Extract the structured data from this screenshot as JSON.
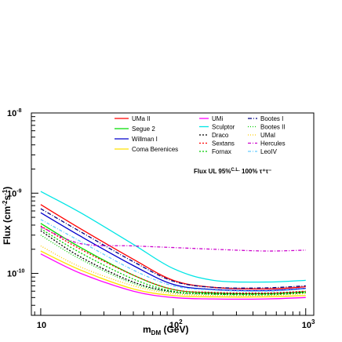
{
  "chart_data": {
    "type": "line",
    "title": "",
    "xlabel": "m_DM (GeV)",
    "ylabel": "Flux (cm^-2 s^-1)",
    "xscale": "log",
    "yscale": "log",
    "xlim": [
      8.5,
      1150
    ],
    "ylim": [
      3e-11,
      1e-08
    ],
    "x_ticks": [
      {
        "value": 10,
        "label": "10",
        "sup": ""
      },
      {
        "value": 100,
        "label": "10",
        "sup": "2"
      },
      {
        "value": 1000,
        "label": "10",
        "sup": "3"
      }
    ],
    "y_ticks": [
      {
        "value": 1e-08,
        "label": "10",
        "sup": "-8"
      },
      {
        "value": 1e-09,
        "label": "10",
        "sup": "-9"
      },
      {
        "value": 1e-10,
        "label": "10",
        "sup": "-10"
      }
    ],
    "xlabel_parts": {
      "main": "m",
      "sub": "DM",
      "rest": " (GeV)"
    },
    "ylabel_parts": {
      "pre": "Flux (cm",
      "sup1": "-2",
      "mid": "s",
      "sup2": "-1",
      "post": ")"
    },
    "grid": false,
    "legend_position": "top",
    "annotation": {
      "pre": "Flux UL 95%",
      "sup": "C.L.",
      "post": " 100% τ⁺τ⁻",
      "color": "#8da0cb"
    },
    "x": [
      10,
      20,
      50,
      100,
      200,
      500,
      1000
    ],
    "series": [
      {
        "name": "UMa II",
        "color": "#ff0000",
        "dash": "solid",
        "values": [
          7.2e-10,
          3.6e-10,
          1.5e-10,
          8.2e-11,
          6.7e-11,
          6.4e-11,
          6.8e-11
        ]
      },
      {
        "name": "Segue 2",
        "color": "#00dd00",
        "dash": "solid",
        "values": [
          4.2e-10,
          2.1e-10,
          9.5e-11,
          6.3e-11,
          5.7e-11,
          5.6e-11,
          5.9e-11
        ]
      },
      {
        "name": "Willman I",
        "color": "#0000cc",
        "dash": "solid",
        "values": [
          5.7e-10,
          2.9e-10,
          1.25e-10,
          7.3e-11,
          6.3e-11,
          6.1e-11,
          6.5e-11
        ]
      },
      {
        "name": "Coma Berenices",
        "color": "#ffe000",
        "dash": "solid",
        "values": [
          1.9e-10,
          1.1e-10,
          6.4e-11,
          5.3e-11,
          5.1e-11,
          5.1e-11,
          5.3e-11
        ]
      },
      {
        "name": "UMi",
        "color": "#ff00ff",
        "dash": "solid",
        "values": [
          1.75e-10,
          1e-10,
          6e-11,
          5e-11,
          4.8e-11,
          4.8e-11,
          5e-11
        ]
      },
      {
        "name": "Sculptor",
        "color": "#00e5e5",
        "dash": "solid",
        "values": [
          1.05e-09,
          5.7e-10,
          2.3e-10,
          1.15e-10,
          8.2e-11,
          7.8e-11,
          8.2e-11
        ]
      },
      {
        "name": "Draco",
        "color": "#000000",
        "dash": "2,2",
        "values": [
          3.4e-10,
          1.6e-10,
          7.8e-11,
          5.9e-11,
          5.6e-11,
          5.6e-11,
          5.8e-11
        ]
      },
      {
        "name": "Sextans",
        "color": "#ff0000",
        "dash": "2,2",
        "values": [
          3.9e-10,
          2e-10,
          9.5e-11,
          6.3e-11,
          5.8e-11,
          5.7e-11,
          6e-11
        ]
      },
      {
        "name": "Fornax",
        "color": "#00cc00",
        "dash": "2,2",
        "values": [
          3.6e-10,
          1.8e-10,
          8.5e-11,
          6e-11,
          5.5e-11,
          5.4e-11,
          5.7e-11
        ]
      },
      {
        "name": "Bootes I",
        "color": "#000080",
        "dash": "5,2,1,2",
        "values": [
          6.4e-10,
          3.3e-10,
          1.4e-10,
          8e-11,
          6.7e-11,
          6.6e-11,
          7e-11
        ]
      },
      {
        "name": "Bootes II",
        "color": "#00cc00",
        "dash": "1,2",
        "values": [
          3e-10,
          1.5e-10,
          7.5e-11,
          5.8e-11,
          5.5e-11,
          5.5e-11,
          5.8e-11
        ]
      },
      {
        "name": "UMaI",
        "color": "#ffcc00",
        "dash": "1,2",
        "values": [
          2.2e-10,
          1.2e-10,
          7e-11,
          5.6e-11,
          5.3e-11,
          5.3e-11,
          5.6e-11
        ]
      },
      {
        "name": "Hercules",
        "color": "#cc00cc",
        "dash": "4,2,1,2",
        "values": [
          3.8e-10,
          2.35e-10,
          2.2e-10,
          2.1e-10,
          2e-10,
          1.9e-10,
          1.95e-10
        ]
      },
      {
        "name": "LeoIV",
        "color": "#66ccff",
        "dash": "4,2,1,2",
        "values": [
          4.7e-10,
          2.5e-10,
          1.1e-10,
          7e-11,
          6.2e-11,
          6e-11,
          6.4e-11
        ]
      }
    ],
    "legend_columns": [
      [
        "UMa II",
        "Segue 2",
        "Willman I",
        "Coma Berenices"
      ],
      [
        "UMi",
        "Sculptor",
        "Draco",
        "Sextans",
        "Fornax"
      ],
      [
        "Bootes I",
        "Bootes II",
        "UMaI",
        "Hercules",
        "LeoIV"
      ]
    ]
  }
}
